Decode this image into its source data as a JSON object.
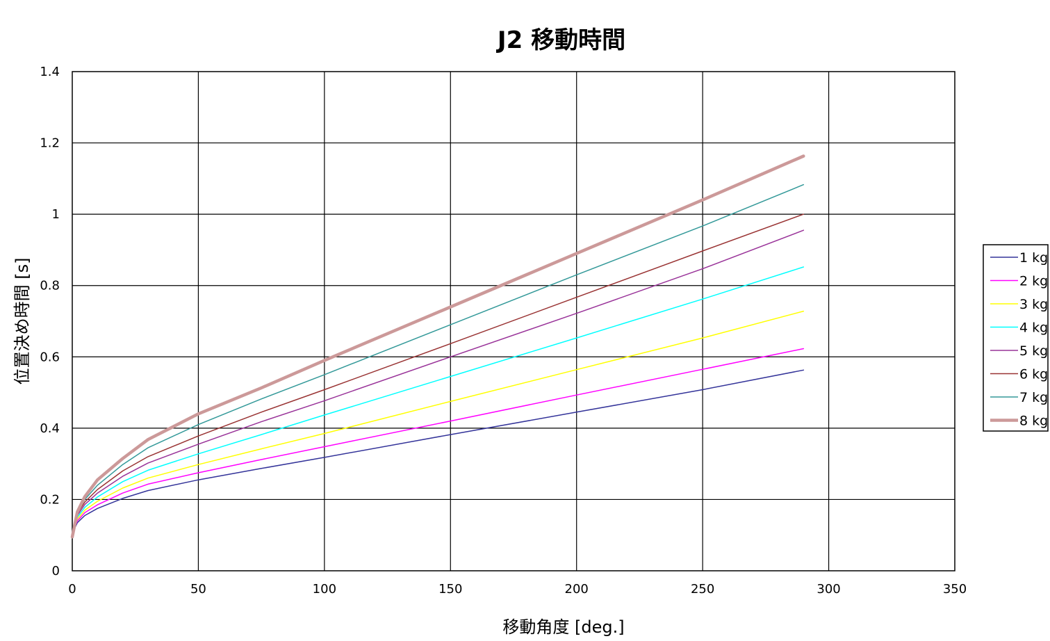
{
  "chart_data": {
    "type": "line",
    "title": "J2 移動時間",
    "xlabel": "移動角度 [deg.]",
    "ylabel": "位置決め時間 [s]",
    "xlim": [
      0,
      350
    ],
    "ylim": [
      0,
      1.4
    ],
    "xticks": [
      0,
      50,
      100,
      150,
      200,
      250,
      300,
      350
    ],
    "yticks": [
      0,
      0.2,
      0.4,
      0.6,
      0.8,
      1,
      1.2,
      1.4
    ],
    "xtick_labels": [
      "0",
      "50",
      "100",
      "150",
      "200",
      "250",
      "300",
      "350"
    ],
    "ytick_labels": [
      "0",
      "0.2",
      "0.4",
      "0.6",
      "0.8",
      "1",
      "1.2",
      "1.4"
    ],
    "grid": true,
    "legend_position": "right",
    "series": [
      {
        "name": "1 kg",
        "color": "#333399",
        "width": 1.5,
        "points": [
          [
            0,
            0.105
          ],
          [
            2,
            0.135
          ],
          [
            5,
            0.155
          ],
          [
            10,
            0.175
          ],
          [
            20,
            0.203
          ],
          [
            30,
            0.225
          ],
          [
            50,
            0.255
          ],
          [
            75,
            0.287
          ],
          [
            100,
            0.318
          ],
          [
            150,
            0.382
          ],
          [
            200,
            0.445
          ],
          [
            250,
            0.508
          ],
          [
            290,
            0.563
          ]
        ]
      },
      {
        "name": "2 kg",
        "color": "#ff00ff",
        "width": 1.5,
        "points": [
          [
            0,
            0.105
          ],
          [
            2,
            0.14
          ],
          [
            5,
            0.163
          ],
          [
            10,
            0.185
          ],
          [
            20,
            0.218
          ],
          [
            30,
            0.243
          ],
          [
            50,
            0.275
          ],
          [
            75,
            0.312
          ],
          [
            100,
            0.348
          ],
          [
            150,
            0.42
          ],
          [
            200,
            0.493
          ],
          [
            250,
            0.565
          ],
          [
            290,
            0.623
          ]
        ]
      },
      {
        "name": "3 kg",
        "color": "#ffff00",
        "width": 1.5,
        "points": [
          [
            0,
            0.105
          ],
          [
            2,
            0.145
          ],
          [
            5,
            0.17
          ],
          [
            10,
            0.195
          ],
          [
            20,
            0.232
          ],
          [
            30,
            0.26
          ],
          [
            50,
            0.298
          ],
          [
            75,
            0.342
          ],
          [
            100,
            0.385
          ],
          [
            150,
            0.475
          ],
          [
            200,
            0.564
          ],
          [
            250,
            0.653
          ],
          [
            290,
            0.728
          ]
        ]
      },
      {
        "name": "4 kg",
        "color": "#00ffff",
        "width": 1.5,
        "points": [
          [
            0,
            0.105
          ],
          [
            2,
            0.15
          ],
          [
            5,
            0.178
          ],
          [
            10,
            0.207
          ],
          [
            20,
            0.25
          ],
          [
            30,
            0.282
          ],
          [
            50,
            0.328
          ],
          [
            75,
            0.382
          ],
          [
            100,
            0.437
          ],
          [
            150,
            0.545
          ],
          [
            200,
            0.653
          ],
          [
            250,
            0.762
          ],
          [
            290,
            0.852
          ]
        ]
      },
      {
        "name": "5 kg",
        "color": "#993399",
        "width": 1.5,
        "points": [
          [
            0,
            0.105
          ],
          [
            2,
            0.155
          ],
          [
            5,
            0.186
          ],
          [
            10,
            0.218
          ],
          [
            20,
            0.265
          ],
          [
            30,
            0.302
          ],
          [
            50,
            0.355
          ],
          [
            75,
            0.418
          ],
          [
            100,
            0.477
          ],
          [
            150,
            0.6
          ],
          [
            200,
            0.722
          ],
          [
            250,
            0.847
          ],
          [
            290,
            0.955
          ]
        ]
      },
      {
        "name": "6 kg",
        "color": "#993333",
        "width": 1.5,
        "points": [
          [
            0,
            0.105
          ],
          [
            2,
            0.16
          ],
          [
            5,
            0.193
          ],
          [
            10,
            0.228
          ],
          [
            20,
            0.28
          ],
          [
            30,
            0.32
          ],
          [
            50,
            0.378
          ],
          [
            75,
            0.445
          ],
          [
            100,
            0.508
          ],
          [
            150,
            0.637
          ],
          [
            200,
            0.767
          ],
          [
            250,
            0.897
          ],
          [
            290,
            1.0
          ]
        ]
      },
      {
        "name": "7 kg",
        "color": "#339999",
        "width": 1.5,
        "points": [
          [
            0,
            0.105
          ],
          [
            2,
            0.165
          ],
          [
            5,
            0.2
          ],
          [
            10,
            0.24
          ],
          [
            20,
            0.298
          ],
          [
            30,
            0.345
          ],
          [
            50,
            0.41
          ],
          [
            75,
            0.482
          ],
          [
            100,
            0.55
          ],
          [
            150,
            0.69
          ],
          [
            200,
            0.83
          ],
          [
            250,
            0.967
          ],
          [
            290,
            1.083
          ]
        ]
      },
      {
        "name": "8 kg",
        "color": "#cc9999",
        "width": 4.5,
        "points": [
          [
            0,
            0.095
          ],
          [
            2,
            0.165
          ],
          [
            5,
            0.208
          ],
          [
            10,
            0.255
          ],
          [
            20,
            0.315
          ],
          [
            30,
            0.368
          ],
          [
            50,
            0.44
          ],
          [
            75,
            0.513
          ],
          [
            100,
            0.59
          ],
          [
            150,
            0.74
          ],
          [
            200,
            0.89
          ],
          [
            250,
            1.04
          ],
          [
            290,
            1.163
          ]
        ]
      }
    ]
  }
}
